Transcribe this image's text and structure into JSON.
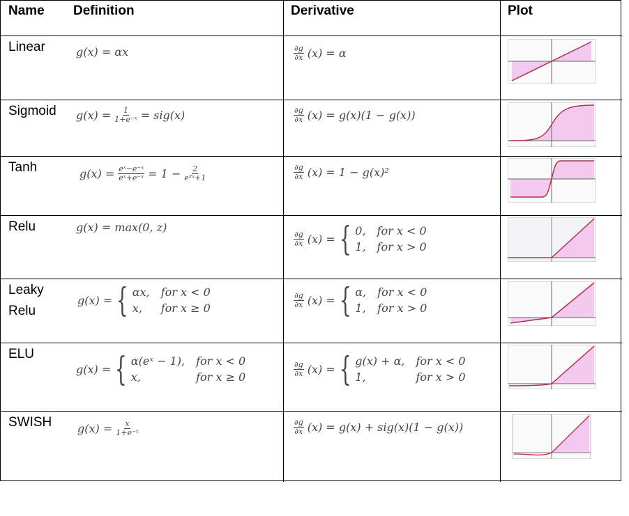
{
  "headers": {
    "name": "Name",
    "definition": "Definition",
    "derivative": "Derivative",
    "plot": "Plot"
  },
  "rows": [
    {
      "name": "Linear",
      "def": "g(x) = αx",
      "der_frac": "∂g/∂x",
      "der": "(x) = α",
      "plot": "linear"
    },
    {
      "name": "Sigmoid",
      "def_a": "g(x) =",
      "def_num": "1",
      "def_den": "1+e⁻ˣ",
      "def_b": "= sig(x)",
      "der": "(x) = g(x)(1 − g(x))",
      "plot": "sigmoid"
    },
    {
      "name": "Tanh",
      "def_a": "g(x) =",
      "def_num": "eˣ−e⁻ˣ",
      "def_den": "eˣ+e⁻ˣ",
      "def_b": "= 1 −",
      "def_num2": "2",
      "def_den2": "e²ˣ+1",
      "der": "(x) = 1 − g(x)²",
      "plot": "tanh"
    },
    {
      "name": "Relu",
      "def": "g(x) = max(0, z)",
      "der": "(x) =",
      "der_c1": "0,",
      "der_c1b": "for x < 0",
      "der_c2": "1,",
      "der_c2b": "for x > 0",
      "plot": "relu"
    },
    {
      "name_line1": "Leaky",
      "name_line2": "Relu",
      "def": "g(x) =",
      "def_c1": "αx,",
      "def_c1b": "for x < 0",
      "def_c2": "x,",
      "def_c2b": "for x ≥ 0",
      "der": "(x) =",
      "der_c1": "α,",
      "der_c1b": "for x < 0",
      "der_c2": "1,",
      "der_c2b": "for x > 0",
      "plot": "leaky"
    },
    {
      "name": "ELU",
      "def": "g(x) =",
      "def_c1": "α(eˣ − 1),",
      "def_c1b": "for x < 0",
      "def_c2": "x,",
      "def_c2b": "for x ≥ 0",
      "der": "(x) =",
      "der_c1": "g(x) + α,",
      "der_c1b": "for x < 0",
      "der_c2": "1,",
      "der_c2b": "for x > 0",
      "plot": "elu"
    },
    {
      "name": "SWISH",
      "def_a": "g(x) =",
      "def_num": "x",
      "def_den": "1+e⁻ˣ",
      "der": "(x) = g(x) + sig(x)(1 − g(x))",
      "plot": "swish"
    }
  ],
  "der_num": "∂g",
  "der_den": "∂x"
}
